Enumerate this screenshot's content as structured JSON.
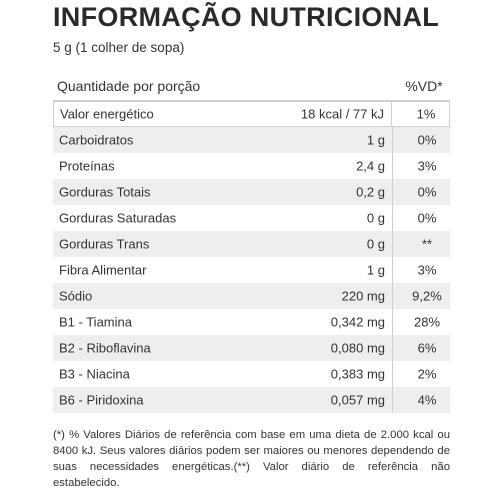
{
  "title": "INFORMAÇÃO NUTRICIONAL",
  "serving": "5 g (1 colher de sopa)",
  "header": {
    "quantity_label": "Quantidade por porção",
    "vd_label": "%VD*"
  },
  "rows": [
    {
      "label": "Valor energético",
      "amount": "18 kcal / 77 kJ",
      "vd": "1%"
    },
    {
      "label": "Carboidratos",
      "amount": "1 g",
      "vd": "0%"
    },
    {
      "label": "Proteínas",
      "amount": "2,4 g",
      "vd": "3%"
    },
    {
      "label": "Gorduras Totais",
      "amount": "0,2 g",
      "vd": "0%"
    },
    {
      "label": "Gorduras Saturadas",
      "amount": "0 g",
      "vd": "0%"
    },
    {
      "label": "Gorduras Trans",
      "amount": "0 g",
      "vd": "**"
    },
    {
      "label": "Fibra Alimentar",
      "amount": "1 g",
      "vd": "3%"
    },
    {
      "label": "Sódio",
      "amount": "220 mg",
      "vd": "9,2%"
    },
    {
      "label": "B1 - Tiamina",
      "amount": "0,342 mg",
      "vd": "28%"
    },
    {
      "label": "B2 - Riboflavina",
      "amount": "0,080 mg",
      "vd": "6%"
    },
    {
      "label": "B3 - Niacina",
      "amount": "0,383 mg",
      "vd": "2%"
    },
    {
      "label": "B6 - Piridoxina",
      "amount": "0,057 mg",
      "vd": "4%"
    }
  ],
  "footnote": "(*) % Valores Diários de referência com base em uma dieta de 2.000 kcal ou 8400 kJ. Seus valores diários podem ser maiores ou menores dependendo de suas necessidades energéticas.(**) Valor diário de referência não estabelecido."
}
